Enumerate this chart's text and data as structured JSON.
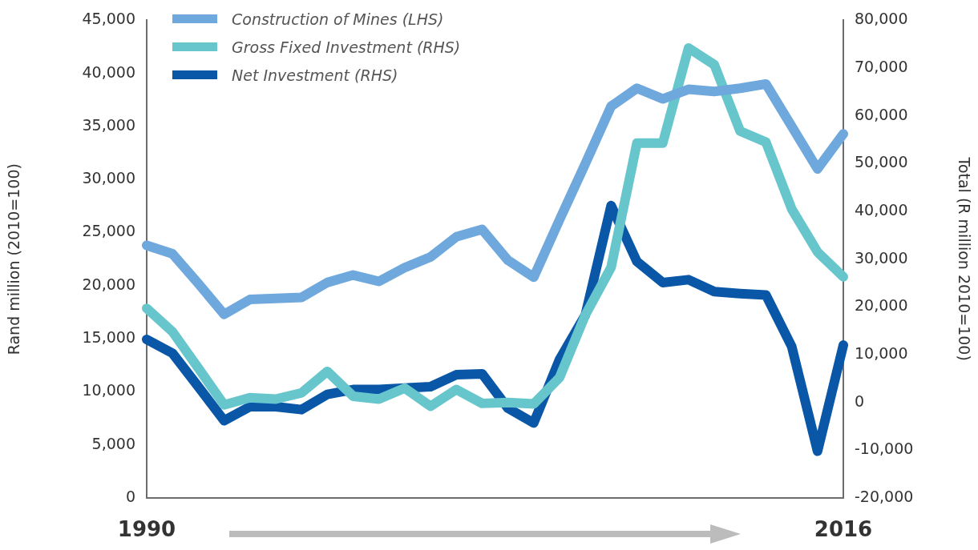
{
  "chart_data": {
    "type": "line",
    "categories": [
      "1990",
      null,
      null,
      null,
      null,
      null,
      null,
      null,
      null,
      null,
      null,
      null,
      null,
      null,
      null,
      null,
      null,
      null,
      null,
      null,
      null,
      null,
      null,
      null,
      null,
      null,
      null,
      "2016"
    ],
    "ylabel": "Rand million (2010=100)",
    "y2label": "Total (R million 2010=100)",
    "ylim": [
      0,
      45000
    ],
    "yticks": [
      {
        "value": 0,
        "label": "0"
      },
      {
        "value": 5000,
        "label": "5,000"
      },
      {
        "value": 10000,
        "label": "10,000"
      },
      {
        "value": 15000,
        "label": "15,000"
      },
      {
        "value": 20000,
        "label": "20,000"
      },
      {
        "value": 25000,
        "label": "25,000"
      },
      {
        "value": 30000,
        "label": "30,000"
      },
      {
        "value": 35000,
        "label": "35,000"
      },
      {
        "value": 40000,
        "label": "40,000"
      },
      {
        "value": 45000,
        "label": "45,000"
      }
    ],
    "y2lim": [
      -20000,
      80000
    ],
    "y2ticks": [
      {
        "value": -20000,
        "label": "-20,000"
      },
      {
        "value": -10000,
        "label": "-10,000"
      },
      {
        "value": 0,
        "label": "0"
      },
      {
        "value": 10000,
        "label": "10,000"
      },
      {
        "value": 20000,
        "label": "20,000"
      },
      {
        "value": 30000,
        "label": "30,000"
      },
      {
        "value": 40000,
        "label": "40,000"
      },
      {
        "value": 50000,
        "label": "50,000"
      },
      {
        "value": 60000,
        "label": "60,000"
      },
      {
        "value": 70000,
        "label": "70,000"
      },
      {
        "value": 80000,
        "label": "80,000"
      }
    ],
    "legend": "top left",
    "marker": "none",
    "line_style": "solid",
    "series": [
      {
        "name": "Construction of Mines (LHS)",
        "color": "#6fa8dc",
        "axis": "y",
        "values": [
          23800,
          23000,
          20200,
          17300,
          18700,
          18800,
          18900,
          20300,
          21000,
          20400,
          21700,
          22700,
          24600,
          25300,
          22400,
          20800,
          26200,
          31500,
          36900,
          38600,
          37600,
          38500,
          38300,
          38600,
          39000,
          35000,
          31000,
          34300
        ]
      },
      {
        "name": "Gross Fixed Investment (RHS)",
        "color": "#66c6cc",
        "axis": "y2",
        "values": [
          19700,
          14800,
          7200,
          -500,
          1000,
          700,
          2000,
          6500,
          1300,
          700,
          3000,
          -800,
          2700,
          -200,
          0,
          -300,
          5200,
          18300,
          28300,
          54300,
          54300,
          74200,
          70700,
          56800,
          54500,
          40500,
          31500,
          26300
        ]
      },
      {
        "name": "Net Investment (RHS)",
        "color": "#0a57a8",
        "axis": "y2",
        "values": [
          13200,
          10300,
          3300,
          -3800,
          -900,
          -900,
          -1500,
          1700,
          2700,
          2700,
          3000,
          3300,
          5800,
          6000,
          -1200,
          -4300,
          9000,
          18300,
          41200,
          29500,
          25100,
          25700,
          23200,
          22800,
          22500,
          11700,
          -10200,
          12000
        ]
      }
    ]
  }
}
